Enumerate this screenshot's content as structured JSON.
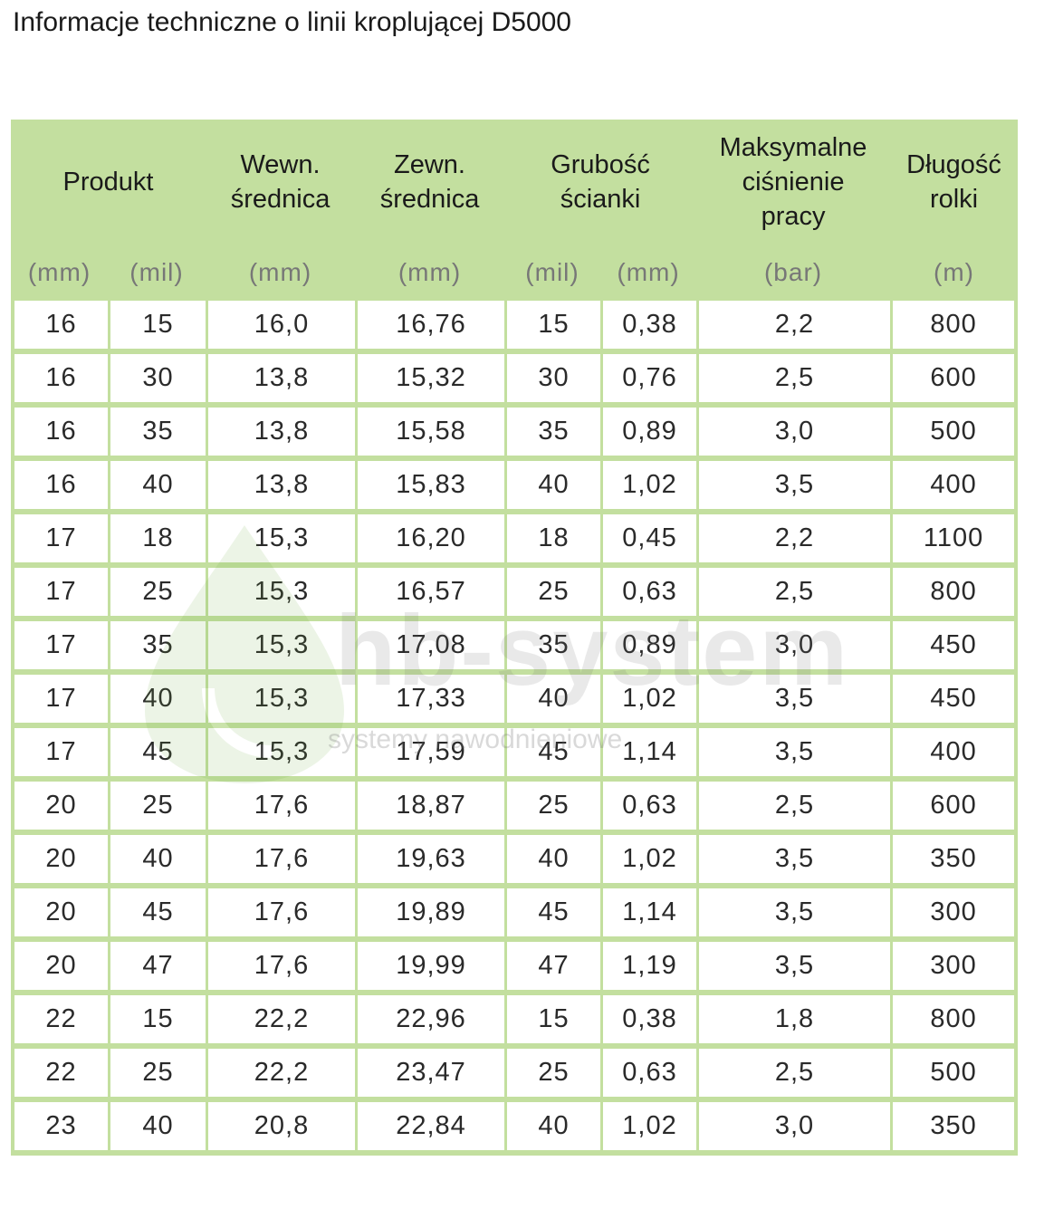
{
  "title": "Informacje techniczne o linii kroplującej D5000",
  "headers": {
    "produkt": "Produkt",
    "wewn_line1": "Wewn.",
    "wewn_line2": "średnica",
    "zewn_line1": "Zewn.",
    "zewn_line2": "średnica",
    "grubosc_line1": "Grubość",
    "grubosc_line2": "ścianki",
    "max_line1": "Maksymalne",
    "max_line2": "ciśnienie",
    "max_line3": "pracy",
    "dlugosc_line1": "Długość",
    "dlugosc_line2": "rolki"
  },
  "units": [
    "(mm)",
    "(mil)",
    "(mm)",
    "(mm)",
    "(mil)",
    "(mm)",
    "(bar)",
    "(m)"
  ],
  "rows": [
    [
      "16",
      "15",
      "16,0",
      "16,76",
      "15",
      "0,38",
      "2,2",
      "800"
    ],
    [
      "16",
      "30",
      "13,8",
      "15,32",
      "30",
      "0,76",
      "2,5",
      "600"
    ],
    [
      "16",
      "35",
      "13,8",
      "15,58",
      "35",
      "0,89",
      "3,0",
      "500"
    ],
    [
      "16",
      "40",
      "13,8",
      "15,83",
      "40",
      "1,02",
      "3,5",
      "400"
    ],
    [
      "17",
      "18",
      "15,3",
      "16,20",
      "18",
      "0,45",
      "2,2",
      "1100"
    ],
    [
      "17",
      "25",
      "15,3",
      "16,57",
      "25",
      "0,63",
      "2,5",
      "800"
    ],
    [
      "17",
      "35",
      "15,3",
      "17,08",
      "35",
      "0,89",
      "3,0",
      "450"
    ],
    [
      "17",
      "40",
      "15,3",
      "17,33",
      "40",
      "1,02",
      "3,5",
      "450"
    ],
    [
      "17",
      "45",
      "15,3",
      "17,59",
      "45",
      "1,14",
      "3,5",
      "400"
    ],
    [
      "20",
      "25",
      "17,6",
      "18,87",
      "25",
      "0,63",
      "2,5",
      "600"
    ],
    [
      "20",
      "40",
      "17,6",
      "19,63",
      "40",
      "1,02",
      "3,5",
      "350"
    ],
    [
      "20",
      "45",
      "17,6",
      "19,89",
      "45",
      "1,14",
      "3,5",
      "300"
    ],
    [
      "20",
      "47",
      "17,6",
      "19,99",
      "47",
      "1,19",
      "3,5",
      "300"
    ],
    [
      "22",
      "15",
      "22,2",
      "22,96",
      "15",
      "0,38",
      "1,8",
      "800"
    ],
    [
      "22",
      "25",
      "22,2",
      "23,47",
      "25",
      "0,63",
      "2,5",
      "500"
    ],
    [
      "23",
      "40",
      "20,8",
      "22,84",
      "40",
      "1,02",
      "3,0",
      "350"
    ]
  ],
  "watermark": {
    "brand": "hb-system",
    "tagline": "systemy nawodnieniowe"
  },
  "colors": {
    "header_bg": "#c3df9f",
    "cell_bg": "#ffffff"
  }
}
